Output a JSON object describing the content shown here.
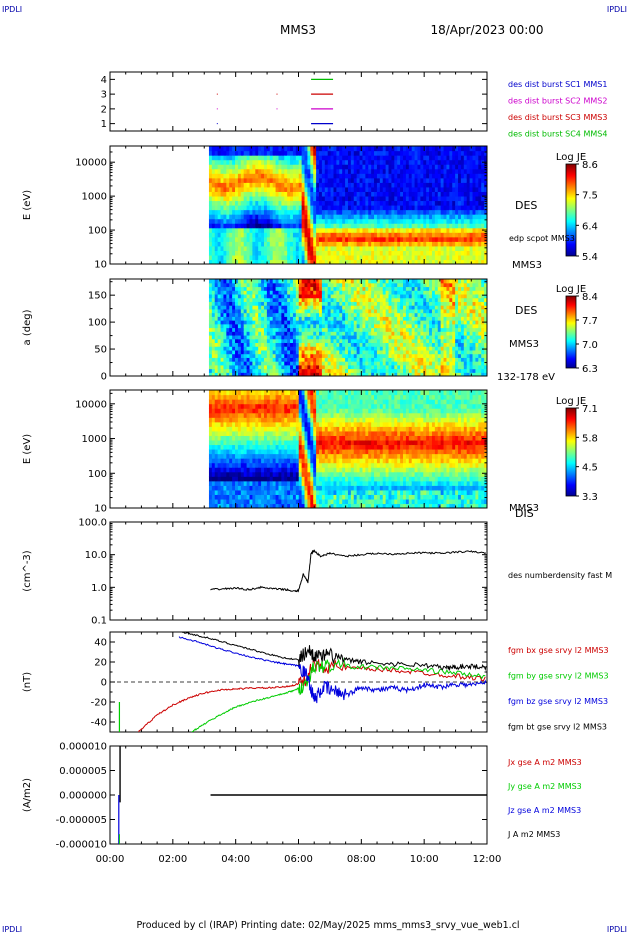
{
  "header": {
    "left_tag": "IPDLI",
    "right_tag": "IPDLI",
    "title": "MMS3",
    "date": "18/Apr/2023 00:00"
  },
  "footer": {
    "text": "Produced by cl (IRAP)   Printing date: 02/May/2025   mms_mms3_srvy_vue_web1.cl",
    "corner_left": "IPDLI",
    "corner_right": "IPDLI"
  },
  "colors": {
    "mms1": "#0000cc",
    "mms2": "#cc00cc",
    "mms3": "#cc0000",
    "mms4": "#00bb00",
    "x": "#cc0000",
    "y": "#00cc00",
    "z": "#0000dd",
    "t": "#000000"
  },
  "chart_data": [
    {
      "type": "scatter",
      "name": "burst-availability",
      "ylim": [
        0.5,
        4.5
      ],
      "yticks": [
        "1",
        "2",
        "3",
        "4"
      ],
      "xlim": [
        0,
        12
      ],
      "legend": [
        {
          "label": "des dist burst SC1 MMS1",
          "color": "#0000cc"
        },
        {
          "label": "des dist burst SC2 MMS2",
          "color": "#cc00cc"
        },
        {
          "label": "des dist burst SC3 MMS3",
          "color": "#cc0000"
        },
        {
          "label": "des dist burst SC4 MMS4",
          "color": "#00bb00"
        }
      ],
      "segments": [
        {
          "sc": 4,
          "x0": 6.4,
          "x1": 7.1
        },
        {
          "sc": 3,
          "x0": 6.4,
          "x1": 7.1
        },
        {
          "sc": 2,
          "x0": 6.4,
          "x1": 7.1
        },
        {
          "sc": 1,
          "x0": 6.4,
          "x1": 7.1
        }
      ],
      "dots": [
        {
          "sc": 3,
          "x": 3.4
        },
        {
          "sc": 3,
          "x": 5.3
        },
        {
          "sc": 2,
          "x": 3.4
        },
        {
          "sc": 2,
          "x": 5.3
        },
        {
          "sc": 1,
          "x": 3.4
        }
      ]
    },
    {
      "type": "heatmap",
      "name": "des-energy-spectrogram",
      "ylabel": "E (eV)",
      "yscale": "log",
      "ylim": [
        10,
        30000
      ],
      "yticks": [
        "10",
        "100",
        "1000",
        "10000"
      ],
      "xlim": [
        0,
        12
      ],
      "data_start": 3.15,
      "right_label": "DES",
      "right_label_2": "edp scpot MMS3",
      "right_label_3": "MMS3",
      "colorbar": {
        "title": "Log JE",
        "min": 5.4,
        "max": 8.6,
        "ticks": [
          "8.6",
          "7.5",
          "6.4",
          "5.4"
        ]
      }
    },
    {
      "type": "heatmap",
      "name": "des-pitch-angle",
      "ylabel": "a (deg)",
      "ylim": [
        0,
        180
      ],
      "yticks": [
        "0",
        "50",
        "100",
        "150"
      ],
      "xlim": [
        0,
        12
      ],
      "data_start": 3.15,
      "right_label": "DES",
      "right_label_2": "MMS3",
      "right_label_3": "132-178 eV",
      "colorbar": {
        "title": "Log JE",
        "min": 6.3,
        "max": 8.4,
        "ticks": [
          "8.4",
          "7.7",
          "7.0",
          "6.3"
        ]
      }
    },
    {
      "type": "heatmap",
      "name": "dis-energy-spectrogram",
      "ylabel": "E (eV)",
      "yscale": "log",
      "ylim": [
        10,
        25000
      ],
      "yticks": [
        "10",
        "100",
        "1000",
        "10000"
      ],
      "xlim": [
        0,
        12
      ],
      "data_start": 3.15,
      "right_label": "DIS",
      "right_label_2": "MMS3",
      "colorbar": {
        "title": "Log JE",
        "min": 3.3,
        "max": 7.1,
        "ticks": [
          "7.1",
          "5.8",
          "4.5",
          "3.3"
        ]
      }
    },
    {
      "type": "line",
      "name": "density",
      "ylabel": "(cm^-3)",
      "yscale": "log",
      "ylim": [
        0.1,
        100
      ],
      "yticks": [
        "0.1",
        "1.0",
        "10.0",
        "100.0"
      ],
      "xlim": [
        0,
        12
      ],
      "series": [
        {
          "name": "des numberdensity fast M",
          "color": "#000000",
          "x": [
            3.2,
            3.6,
            4.0,
            4.4,
            4.8,
            5.2,
            5.6,
            5.9,
            6.0,
            6.15,
            6.3,
            6.4,
            6.5,
            6.7,
            7.0,
            7.5,
            8.0,
            8.5,
            9.0,
            9.5,
            10.0,
            10.5,
            11.0,
            11.5,
            12.0
          ],
          "y": [
            0.85,
            0.9,
            0.95,
            0.85,
            1.0,
            0.9,
            0.85,
            0.75,
            0.8,
            2.5,
            1.4,
            11,
            13,
            9,
            11,
            9,
            10,
            11,
            10.5,
            11,
            11.5,
            11,
            12,
            12.5,
            11
          ]
        }
      ]
    },
    {
      "type": "line",
      "name": "magnetic-field",
      "ylabel": "(nT)",
      "ylim": [
        -50,
        50
      ],
      "yticks": [
        "-40",
        "-20",
        "0",
        "20",
        "40"
      ],
      "xlim": [
        0,
        12
      ],
      "series": [
        {
          "name": "fgm bx gse srvy l2 MMS3",
          "color": "#cc0000",
          "x": [
            0.9,
            1.5,
            2.0,
            2.5,
            3.0,
            3.5,
            4.0,
            4.5,
            5.0,
            5.5,
            5.9,
            6.2,
            6.5,
            7.0,
            8.0,
            9.0,
            10.0,
            11.0,
            12.0
          ],
          "y": [
            -50,
            -33,
            -23,
            -16,
            -11,
            -8,
            -7,
            -6,
            -6,
            -5,
            -3,
            2,
            17,
            15,
            13,
            12,
            9,
            6,
            3
          ]
        },
        {
          "name": "fgm by gse srvy l2 MMS3",
          "color": "#00cc00",
          "x": [
            2.6,
            3.0,
            3.5,
            4.0,
            4.5,
            5.0,
            5.5,
            5.9,
            6.2,
            6.5,
            7.0,
            8.0,
            9.0,
            10.0,
            11.0,
            12.0
          ],
          "y": [
            -50,
            -42,
            -33,
            -25,
            -20,
            -16,
            -12,
            -8,
            -3,
            15,
            17,
            15,
            14,
            12,
            9,
            5
          ]
        },
        {
          "name": "fgm bz gse srvy l2 MMS3",
          "color": "#0000dd",
          "x": [
            2.2,
            2.8,
            3.4,
            4.0,
            4.6,
            5.2,
            5.6,
            6.0,
            6.3,
            6.5,
            6.8,
            7.2,
            7.6,
            8.0,
            8.5,
            9.0,
            9.5,
            10.0,
            10.5,
            11.0,
            11.5,
            12.0
          ],
          "y": [
            45,
            40,
            34,
            29,
            24,
            20,
            18,
            16,
            5,
            -18,
            -5,
            -10,
            -12,
            -5,
            -8,
            -6,
            -8,
            -3,
            -5,
            -2,
            -3,
            0
          ]
        },
        {
          "name": "fgm bt gse srvy l2 MMS3",
          "color": "#000000",
          "x": [
            2.3,
            3.0,
            3.6,
            4.2,
            4.8,
            5.4,
            6.0,
            6.3,
            6.6,
            7.0,
            7.5,
            8.0,
            9.0,
            10.0,
            10.7,
            11.0,
            11.5,
            12.0
          ],
          "y": [
            50,
            45,
            40,
            35,
            30,
            25,
            22,
            32,
            25,
            27,
            22,
            20,
            18,
            17,
            14,
            15,
            16,
            15
          ]
        }
      ]
    },
    {
      "type": "line",
      "name": "current-density",
      "ylabel": "(A/m2)",
      "ylim": [
        -1e-05,
        1e-05
      ],
      "yticks": [
        "-0.000010",
        "-0.000005",
        "0.000000",
        "0.000005",
        "0.000010"
      ],
      "xlim": [
        0,
        12
      ],
      "xticks": [
        "00:00",
        "02:00",
        "04:00",
        "06:00",
        "08:00",
        "10:00",
        "12:00"
      ],
      "series": [
        {
          "name": "Jx gse A m2 MMS3",
          "color": "#cc0000"
        },
        {
          "name": "Jy gse A m2 MMS3",
          "color": "#00cc00"
        },
        {
          "name": "Jz gse A m2 MMS3",
          "color": "#0000dd"
        },
        {
          "name": "J A m2 MMS3",
          "color": "#000000"
        }
      ]
    }
  ]
}
